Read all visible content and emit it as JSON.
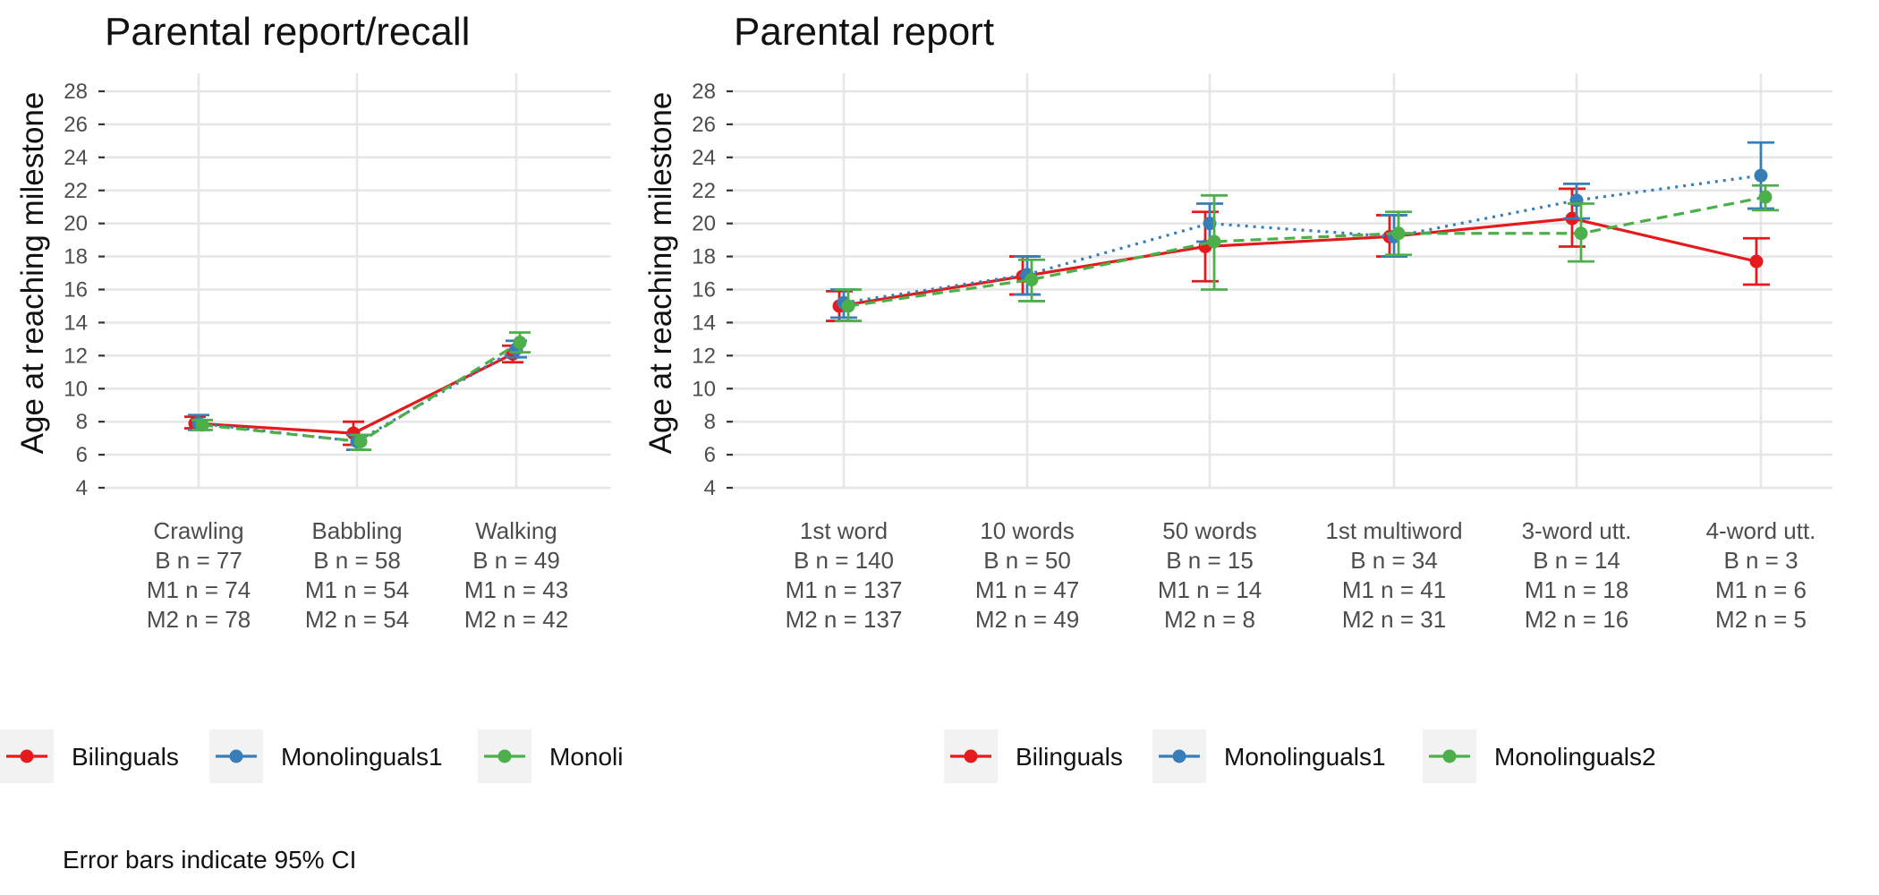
{
  "caption": "Error bars indicate 95% CI",
  "colors": {
    "Bilinguals": "#e41a1c",
    "Monolinguals1": "#377eb8",
    "Monolinguals2": "#4daf4a"
  },
  "series_styles": {
    "Bilinguals": "solid",
    "Monolinguals1": "dotted",
    "Monolinguals2": "dashed"
  },
  "legends": [
    {
      "items": [
        "Bilinguals",
        "Monolinguals1",
        "Monoli"
      ]
    },
    {
      "items": [
        "Bilinguals",
        "Monolinguals1",
        "Monolinguals2"
      ]
    }
  ],
  "chart_data": [
    {
      "type": "line",
      "title": "Parental report/recall",
      "ylabel": "Age at reaching milestone",
      "xlabel": "",
      "ylim": [
        3,
        29
      ],
      "yticks": [
        4,
        6,
        8,
        10,
        12,
        14,
        16,
        18,
        20,
        22,
        24,
        26,
        28
      ],
      "grid": true,
      "legend_position": "bottom",
      "error_bars": "95% CI",
      "categories": [
        [
          "Crawling",
          "B n = 77",
          "M1 n = 74",
          "M2 n = 78"
        ],
        [
          "Babbling",
          "B n = 58",
          "M1 n = 54",
          "M2 n = 54"
        ],
        [
          "Walking",
          "B n = 49",
          "M1 n = 43",
          "M2 n = 42"
        ]
      ],
      "series": [
        {
          "name": "Bilinguals",
          "values": [
            7.9,
            7.3,
            12.1
          ],
          "ci_low": [
            7.6,
            6.6,
            11.6
          ],
          "ci_high": [
            8.3,
            8.0,
            12.6
          ]
        },
        {
          "name": "Monolinguals1",
          "values": [
            7.9,
            6.8,
            12.4
          ],
          "ci_low": [
            7.5,
            6.3,
            11.9
          ],
          "ci_high": [
            8.4,
            7.2,
            12.9
          ]
        },
        {
          "name": "Monolinguals2",
          "values": [
            7.8,
            6.8,
            12.8
          ],
          "ci_low": [
            7.5,
            6.3,
            12.2
          ],
          "ci_high": [
            8.1,
            7.2,
            13.4
          ]
        }
      ]
    },
    {
      "type": "line",
      "title": "Parental report",
      "ylabel": "Age at reaching milestone",
      "xlabel": "",
      "ylim": [
        3,
        29
      ],
      "yticks": [
        4,
        6,
        8,
        10,
        12,
        14,
        16,
        18,
        20,
        22,
        24,
        26,
        28
      ],
      "grid": true,
      "legend_position": "bottom",
      "error_bars": "95% CI",
      "categories": [
        [
          "1st word",
          "B n = 140",
          "M1 n = 137",
          "M2 n = 137"
        ],
        [
          "10 words",
          "B n = 50",
          "M1 n = 47",
          "M2 n = 49"
        ],
        [
          "50 words",
          "B n = 15",
          "M1 n = 14",
          "M2 n = 8"
        ],
        [
          "1st multiword",
          "B n = 34",
          "M1 n = 41",
          "M2 n = 31"
        ],
        [
          "3-word utt.",
          "B n = 14",
          "M1 n = 18",
          "M2 n = 16"
        ],
        [
          "4-word utt.",
          "B n = 3",
          "M1 n = 6",
          "M2 n = 5"
        ]
      ],
      "series": [
        {
          "name": "Bilinguals",
          "values": [
            15.0,
            16.8,
            18.6,
            19.2,
            20.3,
            17.7
          ],
          "ci_low": [
            14.1,
            15.7,
            16.5,
            18.0,
            18.6,
            16.3
          ],
          "ci_high": [
            15.9,
            18.0,
            20.7,
            20.5,
            22.1,
            19.1
          ]
        },
        {
          "name": "Monolinguals1",
          "values": [
            15.2,
            16.9,
            20.0,
            19.2,
            21.4,
            22.9
          ],
          "ci_low": [
            14.3,
            15.7,
            18.9,
            18.0,
            20.3,
            20.9
          ],
          "ci_high": [
            16.0,
            18.0,
            21.2,
            20.5,
            22.4,
            24.9
          ]
        },
        {
          "name": "Monolinguals2",
          "values": [
            15.0,
            16.6,
            18.9,
            19.4,
            19.4,
            21.6
          ],
          "ci_low": [
            14.1,
            15.3,
            16.0,
            18.1,
            17.7,
            20.8
          ],
          "ci_high": [
            16.0,
            17.8,
            21.7,
            20.7,
            21.2,
            22.3
          ]
        }
      ]
    }
  ]
}
